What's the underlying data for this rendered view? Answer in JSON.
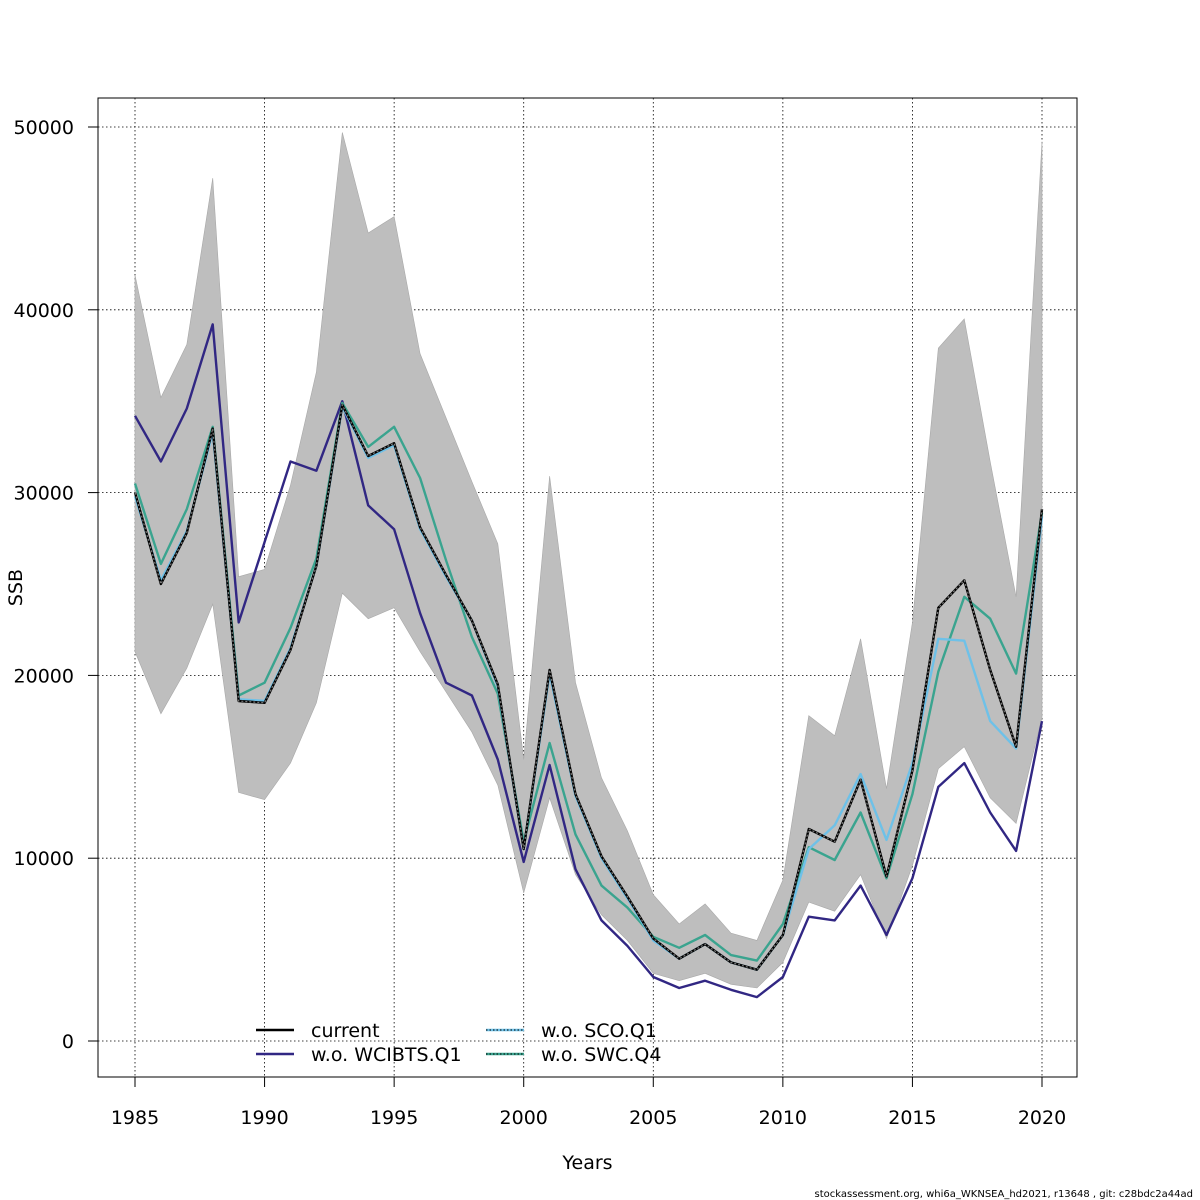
{
  "chart_data": {
    "type": "line",
    "xlabel": "Years",
    "ylabel": "SSB",
    "xlim": [
      1985,
      2020
    ],
    "ylim": [
      -2000,
      51500
    ],
    "x_ticks": [
      1985,
      1990,
      1995,
      2000,
      2005,
      2010,
      2015,
      2020
    ],
    "y_ticks": [
      0,
      10000,
      20000,
      30000,
      40000,
      50000
    ],
    "grid": true,
    "legend_placement": "bottom-center",
    "x": [
      1985,
      1986,
      1987,
      1988,
      1989,
      1990,
      1991,
      1992,
      1993,
      1994,
      1995,
      1996,
      1997,
      1998,
      1999,
      2000,
      2001,
      2002,
      2003,
      2004,
      2005,
      2006,
      2007,
      2008,
      2009,
      2010,
      2011,
      2012,
      2013,
      2014,
      2015,
      2016,
      2017,
      2018,
      2019,
      2020
    ],
    "confidence_band": {
      "color": "#bebebe",
      "upper": [
        41900,
        35200,
        38100,
        47200,
        25400,
        25800,
        30400,
        36600,
        49700,
        44200,
        45100,
        37600,
        34100,
        30600,
        27200,
        15400,
        30900,
        19600,
        14400,
        11500,
        8000,
        6400,
        7500,
        5900,
        5500,
        8800,
        17800,
        16700,
        22000,
        13800,
        22900,
        37900,
        39500,
        31700,
        24300,
        49200
      ],
      "lower": [
        21300,
        17900,
        20400,
        23900,
        13600,
        13200,
        15200,
        18500,
        24500,
        23100,
        23700,
        21300,
        19100,
        16900,
        14000,
        8100,
        13300,
        9100,
        6900,
        5500,
        3700,
        3300,
        3700,
        3100,
        2900,
        4300,
        7600,
        7100,
        9100,
        5600,
        9600,
        14900,
        16100,
        13300,
        11900,
        17700
      ]
    },
    "series": [
      {
        "name": "current",
        "color": "#000000",
        "dash": "solid",
        "width": 2.4,
        "values": [
          30000,
          25000,
          27800,
          33500,
          18600,
          18500,
          21400,
          26000,
          34800,
          32000,
          32700,
          28100,
          25500,
          23000,
          19500,
          10500,
          20300,
          13500,
          10100,
          7900,
          5600,
          4500,
          5300,
          4300,
          3900,
          5800,
          11600,
          10900,
          14300,
          9000,
          14800,
          23700,
          25200,
          20300,
          16100,
          29100
        ]
      },
      {
        "name": "w.o. WCIBTS.Q1",
        "color": "#312783",
        "dash": "solid",
        "width": 2.4,
        "values": [
          34200,
          31700,
          34600,
          39200,
          22900,
          27300,
          31700,
          31200,
          35000,
          29300,
          28000,
          23400,
          19600,
          18900,
          15400,
          9800,
          15100,
          9400,
          6600,
          5200,
          3500,
          2900,
          3300,
          2800,
          2400,
          3500,
          6800,
          6600,
          8500,
          5800,
          8900,
          13900,
          15200,
          12500,
          10400,
          17500
        ]
      },
      {
        "name": "w.o. SCO.Q1",
        "color": "#6ec1e8",
        "dash": "dotted",
        "width": 2.4,
        "values": [
          29800,
          25200,
          27900,
          33300,
          18700,
          18600,
          21500,
          26000,
          34700,
          31900,
          32600,
          28000,
          25400,
          23000,
          19400,
          10500,
          20100,
          13400,
          10000,
          7800,
          5500,
          4500,
          5300,
          4300,
          3900,
          5800,
          10500,
          11800,
          14600,
          11000,
          15200,
          22000,
          21900,
          17500,
          16000,
          28700
        ]
      },
      {
        "name": "w.o. SWC.Q4",
        "color": "#3aa48f",
        "dash": "solid",
        "width": 2.4,
        "values": [
          30500,
          26100,
          29100,
          33600,
          18900,
          19600,
          22600,
          26400,
          34900,
          32500,
          33600,
          30800,
          26300,
          22100,
          19000,
          10900,
          16300,
          11300,
          8500,
          7300,
          5700,
          5100,
          5800,
          4700,
          4400,
          6400,
          10600,
          9900,
          12500,
          8900,
          13500,
          20200,
          24300,
          23100,
          20100,
          28900
        ]
      }
    ]
  },
  "footer": "stockassessment.org, whi6a_WKNSEA_hd2021, r13648 , git: c28bdc2a44ad"
}
